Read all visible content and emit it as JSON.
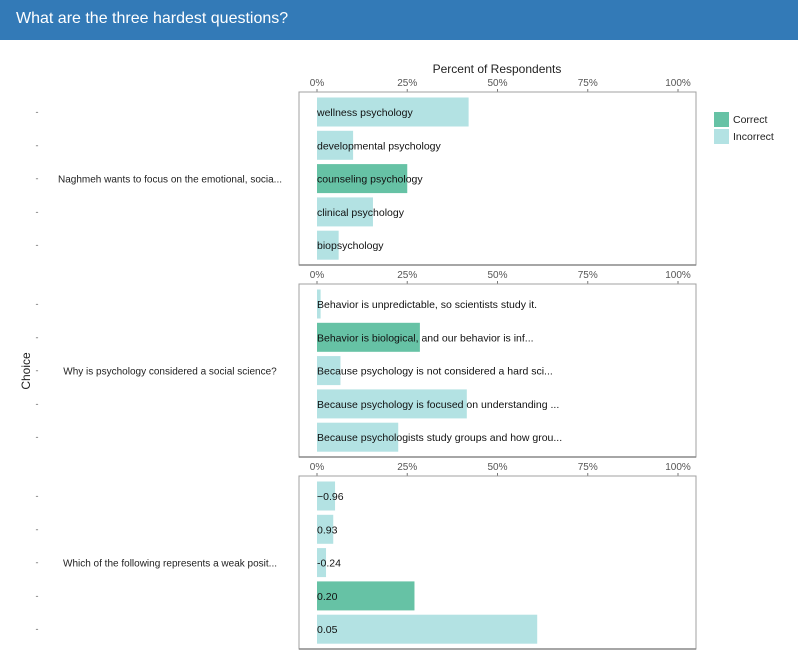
{
  "header": {
    "title": "What are the three hardest questions?"
  },
  "colors": {
    "header_bg": "#337ab7",
    "correct": "#66c2a5",
    "incorrect": "#b3e2e3",
    "panel_border": "#a0a0a0"
  },
  "chart_data": {
    "type": "bar",
    "orientation": "horizontal",
    "xlabel": "Percent of Respondents",
    "ylabel": "Choice",
    "xlim": [
      0,
      100
    ],
    "xticks": [
      "0%",
      "25%",
      "50%",
      "75%",
      "100%"
    ],
    "legend": {
      "placement": "right",
      "entries": [
        {
          "name": "Correct",
          "color": "#66c2a5"
        },
        {
          "name": "Incorrect",
          "color": "#b3e2e3"
        }
      ]
    },
    "panels": [
      {
        "question": "Naghmeh wants to focus on the emotional, socia...",
        "choices": [
          {
            "label": "wellness psychology",
            "value": 42,
            "correct": false
          },
          {
            "label": "developmental psychology",
            "value": 10,
            "correct": false
          },
          {
            "label": "counseling psychology",
            "value": 25,
            "correct": true
          },
          {
            "label": "clinical psychology",
            "value": 15.5,
            "correct": false
          },
          {
            "label": "biopsychology",
            "value": 6,
            "correct": false
          }
        ]
      },
      {
        "question": "Why is psychology considered a social science?",
        "choices": [
          {
            "label": "Behavior is unpredictable, so scientists study it.",
            "value": 1,
            "correct": false
          },
          {
            "label": "Behavior is biological, and our behavior is inf...",
            "value": 28.5,
            "correct": true
          },
          {
            "label": "Because psychology is not considered a hard sci...",
            "value": 6.5,
            "correct": false
          },
          {
            "label": "Because psychology is focused on understanding ...",
            "value": 41.5,
            "correct": false
          },
          {
            "label": "Because psychologists study groups and how grou...",
            "value": 22.5,
            "correct": false
          }
        ]
      },
      {
        "question": "Which of the following represents a weak posit...",
        "choices": [
          {
            "label": "−0.96",
            "value": 5,
            "correct": false
          },
          {
            "label": "0.93",
            "value": 4.5,
            "correct": false
          },
          {
            "label": "-0.24",
            "value": 2.5,
            "correct": false
          },
          {
            "label": "0.20",
            "value": 27,
            "correct": true
          },
          {
            "label": "0.05",
            "value": 61,
            "correct": false
          }
        ]
      }
    ]
  }
}
